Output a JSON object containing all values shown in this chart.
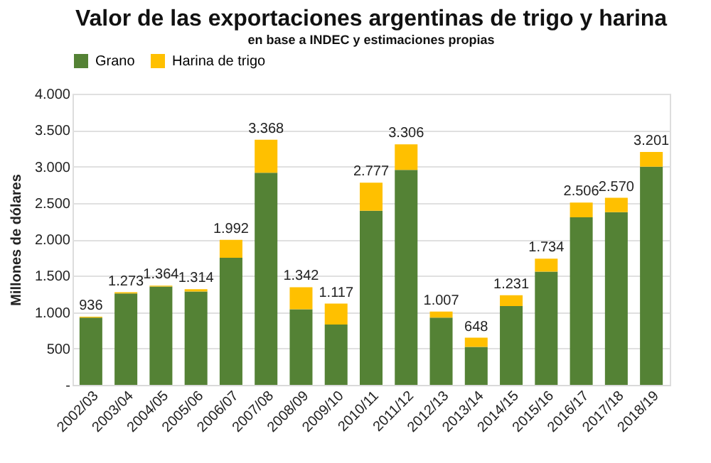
{
  "chart_data": {
    "type": "bar",
    "title": "Valor de las exportaciones argentinas de trigo y harina",
    "subtitle": "en base a INDEC y estimaciones propias",
    "ylabel": "Millones de dólares",
    "categories": [
      "2002/03",
      "2003/04",
      "2004/05",
      "2005/06",
      "2006/07",
      "2007/08",
      "2008/09",
      "2009/10",
      "2010/11",
      "2011/12",
      "2012/13",
      "2013/14",
      "2014/15",
      "2015/16",
      "2016/17",
      "2017/18",
      "2018/19"
    ],
    "stacked": true,
    "series": [
      {
        "name": "Grano",
        "color": "#548235",
        "values": [
          925,
          1256,
          1352,
          1282,
          1747,
          2915,
          1040,
          829,
          2392,
          2953,
          925,
          523,
          1084,
          1556,
          2302,
          2372,
          2997
        ]
      },
      {
        "name": "Harina de trigo",
        "color": "#ffc000",
        "values": [
          11,
          17,
          12,
          32,
          245,
          453,
          302,
          288,
          385,
          353,
          82,
          125,
          147,
          178,
          204,
          198,
          204
        ]
      }
    ],
    "totals": [
      "936",
      "1.273",
      "1.364",
      "1.314",
      "1.992",
      "3.368",
      "1.342",
      "1.117",
      "2.777",
      "3.306",
      "1.007",
      "648",
      "1.231",
      "1.734",
      "2.506",
      "2.570",
      "3.201"
    ],
    "ylim": [
      0,
      4000
    ],
    "yticks": [
      {
        "value": 0,
        "label": "-"
      },
      500,
      {
        "value": 1000,
        "label": "1.000"
      },
      {
        "value": 1500,
        "label": "1.500"
      },
      {
        "value": 2000,
        "label": "2.000"
      },
      {
        "value": 2500,
        "label": "2.500"
      },
      {
        "value": 3000,
        "label": "3.000"
      },
      {
        "value": 3500,
        "label": "3.500"
      },
      {
        "value": 4000,
        "label": "4.000"
      }
    ],
    "grid": "y",
    "legend": "top"
  }
}
